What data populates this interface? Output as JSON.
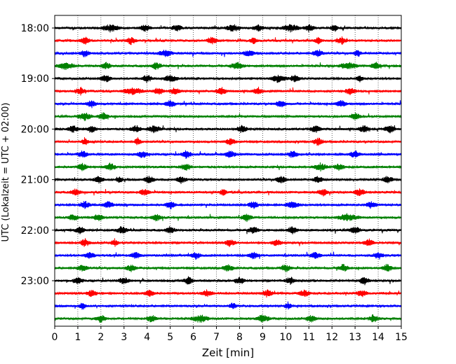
{
  "chart_data": {
    "type": "line",
    "xlabel": "Zeit  [min]",
    "ylabel": "UTC (Lokalzeit = UTC + 02:00)",
    "xlim": [
      0,
      15
    ],
    "x_ticks": [
      "0",
      "1",
      "2",
      "3",
      "4",
      "5",
      "6",
      "7",
      "8",
      "9",
      "10",
      "11",
      "12",
      "13",
      "14",
      "15"
    ],
    "y_ticks": [
      "18:00",
      "19:00",
      "20:00",
      "21:00",
      "22:00",
      "23:00"
    ],
    "grid_x": "dotted vertical at each minute",
    "row_interval_min": 15,
    "rows_start": "18:00",
    "row_count": 24,
    "color_cycle": [
      "#000000",
      "#ff0000",
      "#0000ff",
      "#008000"
    ],
    "bursts": [
      [
        [
          2.4,
          0.5
        ],
        [
          3.9,
          0.3
        ],
        [
          5.3,
          0.3
        ],
        [
          7.7,
          0.4
        ],
        [
          8.8,
          0.3
        ],
        [
          10.2,
          0.5
        ],
        [
          11.0,
          0.3
        ],
        [
          12.1,
          0.2
        ]
      ],
      [
        [
          1.3,
          0.3
        ],
        [
          3.3,
          0.3
        ],
        [
          6.8,
          0.3
        ],
        [
          8.6,
          0.2
        ],
        [
          11.4,
          0.2
        ],
        [
          12.4,
          0.3
        ]
      ],
      [
        [
          1.3,
          0.3
        ],
        [
          4.8,
          0.4
        ],
        [
          8.4,
          0.3
        ],
        [
          11.4,
          0.3
        ],
        [
          13.1,
          0.2
        ]
      ],
      [
        [
          0.5,
          0.5
        ],
        [
          2.2,
          0.3
        ],
        [
          4.4,
          0.3
        ],
        [
          7.9,
          0.4
        ],
        [
          12.7,
          0.5
        ],
        [
          13.9,
          0.3
        ]
      ],
      [
        [
          2.2,
          0.3
        ],
        [
          4.0,
          0.3
        ],
        [
          5.0,
          0.4
        ],
        [
          9.7,
          0.5
        ],
        [
          10.4,
          0.3
        ],
        [
          13.2,
          0.2
        ]
      ],
      [
        [
          1.1,
          0.3
        ],
        [
          3.4,
          0.6
        ],
        [
          4.5,
          0.3
        ],
        [
          5.2,
          0.3
        ],
        [
          7.2,
          0.3
        ],
        [
          8.8,
          0.3
        ],
        [
          12.8,
          0.3
        ]
      ],
      [
        [
          1.6,
          0.3
        ],
        [
          5.0,
          0.3
        ],
        [
          9.8,
          0.3
        ],
        [
          12.4,
          0.3
        ]
      ],
      [
        [
          1.3,
          0.4
        ],
        [
          2.1,
          0.3
        ],
        [
          13.0,
          0.3
        ]
      ],
      [
        [
          0.8,
          0.3
        ],
        [
          1.6,
          0.3
        ],
        [
          3.5,
          0.3
        ],
        [
          4.3,
          0.4
        ],
        [
          8.1,
          0.3
        ],
        [
          11.3,
          0.3
        ],
        [
          13.4,
          0.3
        ],
        [
          14.5,
          0.3
        ]
      ],
      [
        [
          1.3,
          0.2
        ],
        [
          3.6,
          0.2
        ],
        [
          7.6,
          0.3
        ],
        [
          11.4,
          0.3
        ]
      ],
      [
        [
          1.2,
          0.3
        ],
        [
          3.8,
          0.3
        ],
        [
          5.7,
          0.3
        ],
        [
          7.6,
          0.3
        ],
        [
          10.3,
          0.3
        ],
        [
          13.0,
          0.3
        ]
      ],
      [
        [
          1.2,
          0.3
        ],
        [
          2.4,
          0.3
        ],
        [
          5.7,
          0.3
        ],
        [
          11.5,
          0.4
        ],
        [
          12.3,
          0.3
        ]
      ],
      [
        [
          1.9,
          0.3
        ],
        [
          2.8,
          0.2
        ],
        [
          4.1,
          0.3
        ],
        [
          5.5,
          0.3
        ],
        [
          9.8,
          0.3
        ],
        [
          11.4,
          0.3
        ],
        [
          14.4,
          0.3
        ]
      ],
      [
        [
          0.9,
          0.3
        ],
        [
          3.9,
          0.3
        ],
        [
          7.3,
          0.2
        ],
        [
          11.6,
          0.3
        ],
        [
          13.2,
          0.3
        ]
      ],
      [
        [
          1.3,
          0.3
        ],
        [
          2.3,
          0.3
        ],
        [
          5.0,
          0.3
        ],
        [
          8.6,
          0.3
        ],
        [
          10.3,
          0.4
        ],
        [
          13.7,
          0.3
        ]
      ],
      [
        [
          0.8,
          0.3
        ],
        [
          1.9,
          0.3
        ],
        [
          4.4,
          0.3
        ],
        [
          8.3,
          0.3
        ],
        [
          12.7,
          0.6
        ]
      ],
      [
        [
          1.1,
          0.3
        ],
        [
          2.9,
          0.3
        ],
        [
          5.0,
          0.3
        ],
        [
          8.6,
          0.3
        ],
        [
          10.3,
          0.3
        ],
        [
          13.0,
          0.3
        ]
      ],
      [
        [
          1.3,
          0.3
        ],
        [
          2.6,
          0.2
        ],
        [
          7.6,
          0.3
        ],
        [
          9.6,
          0.3
        ],
        [
          13.6,
          0.3
        ]
      ],
      [
        [
          1.5,
          0.3
        ],
        [
          3.5,
          0.3
        ],
        [
          6.1,
          0.3
        ],
        [
          8.6,
          0.3
        ],
        [
          11.3,
          0.3
        ],
        [
          14.0,
          0.3
        ]
      ],
      [
        [
          1.2,
          0.3
        ],
        [
          3.3,
          0.3
        ],
        [
          7.5,
          0.3
        ],
        [
          10.0,
          0.3
        ],
        [
          12.5,
          0.3
        ],
        [
          14.4,
          0.3
        ]
      ],
      [
        [
          1.0,
          0.3
        ],
        [
          3.0,
          0.3
        ],
        [
          5.8,
          0.3
        ],
        [
          8.0,
          0.3
        ],
        [
          10.2,
          0.3
        ],
        [
          13.4,
          0.3
        ]
      ],
      [
        [
          1.6,
          0.3
        ],
        [
          4.1,
          0.3
        ],
        [
          6.6,
          0.3
        ],
        [
          9.2,
          0.3
        ],
        [
          10.8,
          0.3
        ],
        [
          13.3,
          0.3
        ]
      ],
      [
        [
          1.2,
          0.2
        ],
        [
          7.7,
          0.2
        ],
        [
          10.1,
          0.2
        ]
      ],
      [
        [
          2.0,
          0.3
        ],
        [
          4.2,
          0.3
        ],
        [
          6.3,
          0.5
        ],
        [
          9.0,
          0.4
        ],
        [
          11.1,
          0.3
        ],
        [
          13.8,
          0.3
        ]
      ]
    ]
  }
}
